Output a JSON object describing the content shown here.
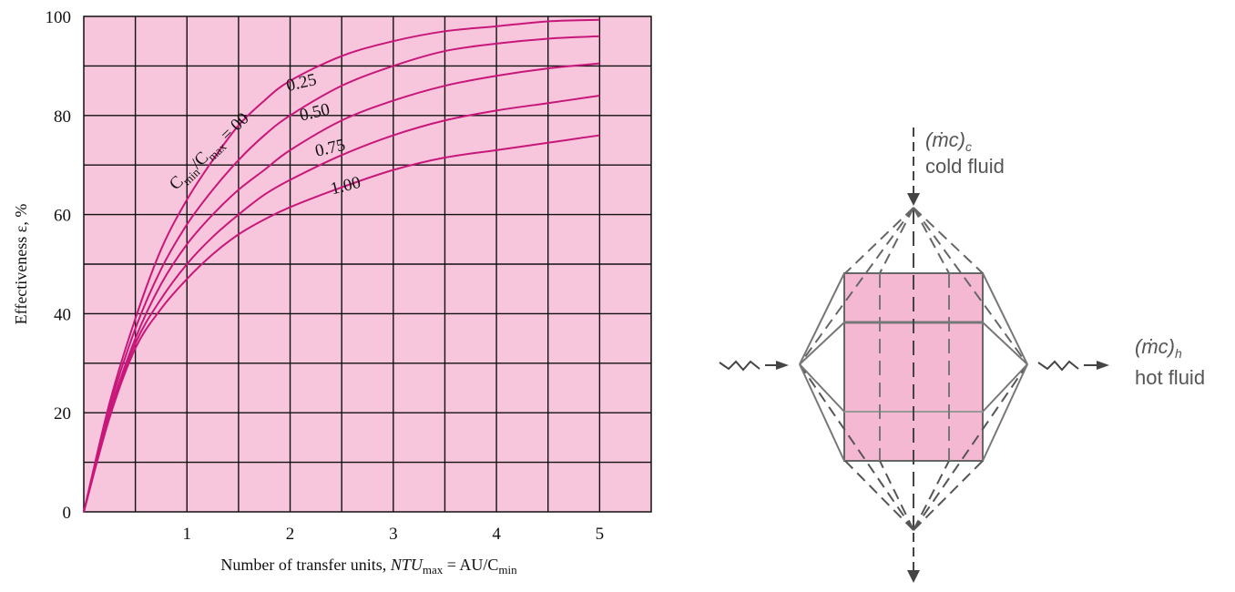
{
  "colors": {
    "plot_background": "#f8c6dc",
    "grid": "#111111",
    "curve": "#c8177a",
    "diagram_fill": "#f4b8d2",
    "diagram_line": "#555555"
  },
  "chart_data": {
    "type": "line",
    "xlabel_main": "Number of transfer units, ",
    "xlabel_var": "NTU",
    "xlabel_sub": "max",
    "xlabel_eq": " = AU/C",
    "xlabel_sub2": "min",
    "ylabel": "Effectiveness ε, %",
    "xlim": [
      0,
      5.5
    ],
    "ylim": [
      0,
      100
    ],
    "x_ticks": [
      1,
      2,
      3,
      4,
      5
    ],
    "y_ticks": [
      0,
      20,
      40,
      60,
      80,
      100
    ],
    "grid": true,
    "x_grid_step": 0.5,
    "y_grid_step": 10,
    "series_label_prefix": "C",
    "series_label_sub1": "min",
    "series_label_mid": "/C",
    "series_label_sub2": "max",
    "series_label_eq": " = 0",
    "series": [
      {
        "name": "0",
        "x": [
          0,
          0.25,
          0.5,
          0.75,
          1.0,
          1.25,
          1.5,
          1.75,
          2.0,
          2.5,
          3.0,
          3.5,
          4.0,
          4.5,
          5.0
        ],
        "y": [
          0,
          22,
          39,
          53,
          63,
          71,
          78,
          83,
          87,
          92,
          95,
          97,
          98,
          99,
          99.3
        ]
      },
      {
        "name": "0.25",
        "x": [
          0,
          0.25,
          0.5,
          0.75,
          1.0,
          1.25,
          1.5,
          1.75,
          2.0,
          2.5,
          3.0,
          3.5,
          4.0,
          4.5,
          5.0
        ],
        "y": [
          0,
          21,
          37,
          49,
          58,
          65,
          71,
          76,
          80,
          86,
          90,
          93,
          94.5,
          95.5,
          96
        ]
      },
      {
        "name": "0.50",
        "x": [
          0,
          0.25,
          0.5,
          0.75,
          1.0,
          1.25,
          1.5,
          1.75,
          2.0,
          2.5,
          3.0,
          3.5,
          4.0,
          4.5,
          5.0
        ],
        "y": [
          0,
          20,
          35,
          46,
          54,
          60,
          65,
          69,
          73,
          79,
          83,
          86,
          88,
          89.5,
          90.5
        ]
      },
      {
        "name": "0.75",
        "x": [
          0,
          0.25,
          0.5,
          0.75,
          1.0,
          1.25,
          1.5,
          1.75,
          2.0,
          2.5,
          3.0,
          3.5,
          4.0,
          4.5,
          5.0
        ],
        "y": [
          0,
          19.5,
          34,
          43,
          50,
          55.5,
          60,
          64,
          67,
          72,
          76,
          79,
          81,
          82.5,
          84
        ]
      },
      {
        "name": "1.00",
        "x": [
          0,
          0.25,
          0.5,
          0.75,
          1.0,
          1.25,
          1.5,
          1.75,
          2.0,
          2.5,
          3.0,
          3.5,
          4.0,
          4.5,
          5.0
        ],
        "y": [
          0,
          19,
          33,
          41,
          47,
          52,
          56,
          59,
          61.5,
          65.5,
          69,
          71.5,
          73,
          74.5,
          76
        ]
      }
    ]
  },
  "diagram": {
    "cold_label_main": "(ṁc)",
    "cold_label_sub": "c",
    "cold_label_text": "cold fluid",
    "hot_label_main": "(ṁc)",
    "hot_label_sub": "h",
    "hot_label_text": "hot fluid"
  }
}
